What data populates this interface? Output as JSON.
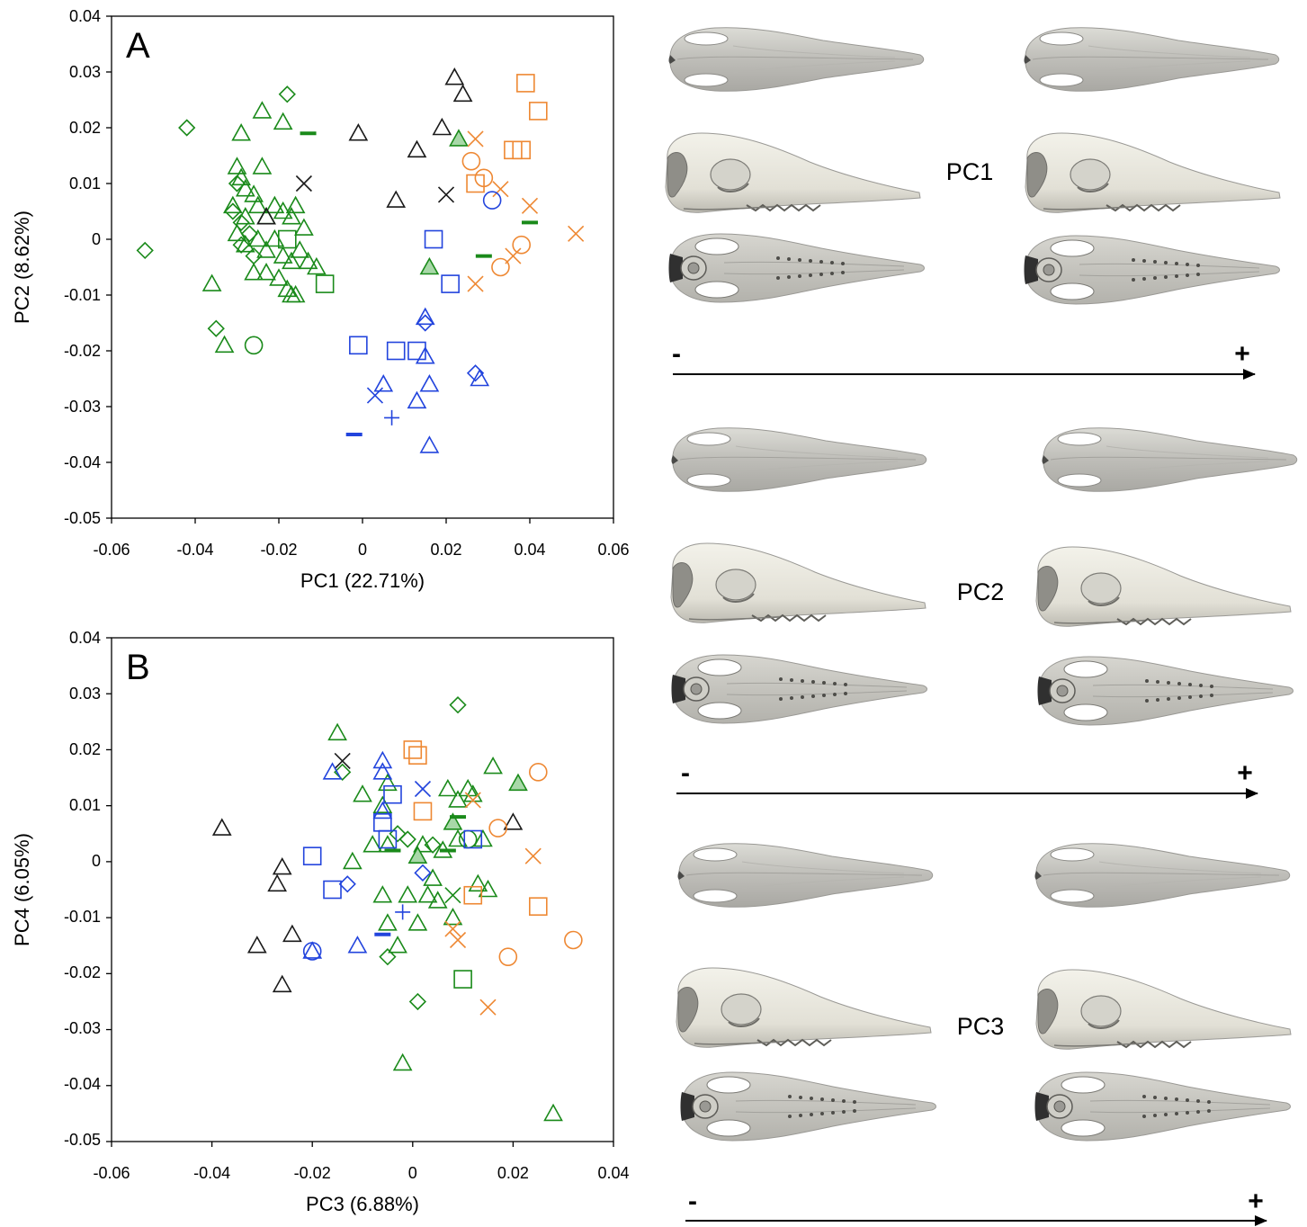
{
  "colors": {
    "green": "#1a8a1a",
    "black": "#1a1a1a",
    "blue": "#2244dd",
    "orange": "#ee8833",
    "green_fill": "#a8d8a8",
    "skull_light": "#efeee8",
    "skull_shade": "#8a8a88"
  },
  "chart_data": [
    {
      "type": "scatter",
      "panel_label": "A",
      "xlabel": "PC1 (22.71%)",
      "ylabel": "PC2 (8.62%)",
      "xlim": [
        -0.06,
        0.06
      ],
      "ylim": [
        -0.05,
        0.04
      ],
      "xticks": [
        "-0.06",
        "-0.04",
        "-0.02",
        "0",
        "0.02",
        "0.04",
        "0.06"
      ],
      "yticks": [
        "0.04",
        "0.03",
        "0.02",
        "0.01",
        "0",
        "-0.01",
        "-0.02",
        "-0.03",
        "-0.04",
        "-0.05"
      ],
      "grid": false,
      "series": [
        {
          "color": "green",
          "marker": "triangle",
          "points": [
            [
              -0.029,
              0.019
            ],
            [
              -0.024,
              0.023
            ],
            [
              -0.019,
              0.021
            ],
            [
              -0.03,
              0.013
            ],
            [
              -0.029,
              0.011
            ],
            [
              -0.028,
              0.009
            ],
            [
              -0.026,
              0.008
            ],
            [
              -0.024,
              0.013
            ],
            [
              -0.031,
              0.006
            ],
            [
              -0.028,
              0.004
            ],
            [
              -0.025,
              0.006
            ],
            [
              -0.023,
              0.004
            ],
            [
              -0.021,
              0.006
            ],
            [
              -0.019,
              0.005
            ],
            [
              -0.017,
              0.004
            ],
            [
              -0.016,
              0.006
            ],
            [
              -0.014,
              0.002
            ],
            [
              -0.03,
              0.001
            ],
            [
              -0.028,
              -0.001
            ],
            [
              -0.025,
              0.0
            ],
            [
              -0.023,
              -0.002
            ],
            [
              -0.021,
              0.0
            ],
            [
              -0.019,
              -0.003
            ],
            [
              -0.017,
              -0.004
            ],
            [
              -0.015,
              -0.002
            ],
            [
              -0.013,
              -0.004
            ],
            [
              -0.011,
              -0.005
            ],
            [
              -0.026,
              -0.006
            ],
            [
              -0.023,
              -0.006
            ],
            [
              -0.02,
              -0.007
            ],
            [
              -0.018,
              -0.009
            ],
            [
              -0.036,
              -0.008
            ],
            [
              -0.033,
              -0.019
            ],
            [
              -0.017,
              -0.01
            ],
            [
              -0.016,
              -0.01
            ]
          ]
        },
        {
          "color": "green",
          "marker": "triangle_filled",
          "points": [
            [
              0.023,
              0.018
            ],
            [
              0.016,
              -0.005
            ]
          ]
        },
        {
          "color": "green",
          "marker": "diamond",
          "points": [
            [
              -0.018,
              0.026
            ],
            [
              -0.042,
              0.02
            ],
            [
              -0.052,
              -0.002
            ],
            [
              -0.035,
              -0.016
            ],
            [
              -0.03,
              0.01
            ],
            [
              -0.031,
              0.005
            ],
            [
              -0.029,
              0.003
            ],
            [
              -0.027,
              0.001
            ],
            [
              -0.026,
              -0.003
            ],
            [
              -0.029,
              -0.001
            ]
          ]
        },
        {
          "color": "green",
          "marker": "square",
          "points": [
            [
              -0.009,
              -0.008
            ],
            [
              -0.018,
              0.0
            ]
          ]
        },
        {
          "color": "green",
          "marker": "circle",
          "points": [
            [
              -0.026,
              -0.019
            ]
          ]
        },
        {
          "color": "green",
          "marker": "dash",
          "points": [
            [
              -0.013,
              0.019
            ],
            [
              0.04,
              0.003
            ],
            [
              0.029,
              -0.003
            ]
          ]
        },
        {
          "color": "black",
          "marker": "triangle",
          "points": [
            [
              0.022,
              0.029
            ],
            [
              0.024,
              0.026
            ],
            [
              0.019,
              0.02
            ],
            [
              -0.001,
              0.019
            ],
            [
              0.013,
              0.016
            ],
            [
              0.008,
              0.007
            ],
            [
              -0.023,
              0.004
            ]
          ]
        },
        {
          "color": "black",
          "marker": "x",
          "points": [
            [
              -0.014,
              0.01
            ],
            [
              0.02,
              0.008
            ]
          ]
        },
        {
          "color": "orange",
          "marker": "square",
          "points": [
            [
              0.039,
              0.028
            ],
            [
              0.042,
              0.023
            ],
            [
              0.036,
              0.016
            ],
            [
              0.038,
              0.016
            ],
            [
              0.027,
              0.01
            ]
          ]
        },
        {
          "color": "orange",
          "marker": "circle",
          "points": [
            [
              0.026,
              0.014
            ],
            [
              0.029,
              0.011
            ],
            [
              0.033,
              -0.005
            ],
            [
              0.038,
              -0.001
            ]
          ]
        },
        {
          "color": "orange",
          "marker": "x",
          "points": [
            [
              0.027,
              0.018
            ],
            [
              0.033,
              0.009
            ],
            [
              0.04,
              0.006
            ],
            [
              0.051,
              0.001
            ],
            [
              0.036,
              -0.003
            ],
            [
              0.027,
              -0.008
            ]
          ]
        },
        {
          "color": "blue",
          "marker": "square",
          "points": [
            [
              0.017,
              0.0
            ],
            [
              0.021,
              -0.008
            ],
            [
              -0.001,
              -0.019
            ],
            [
              0.008,
              -0.02
            ],
            [
              0.013,
              -0.02
            ]
          ]
        },
        {
          "color": "blue",
          "marker": "triangle",
          "points": [
            [
              0.015,
              -0.014
            ],
            [
              0.015,
              -0.021
            ],
            [
              0.005,
              -0.026
            ],
            [
              0.016,
              -0.026
            ],
            [
              0.013,
              -0.029
            ],
            [
              0.016,
              -0.037
            ],
            [
              0.028,
              -0.025
            ]
          ]
        },
        {
          "color": "blue",
          "marker": "diamond",
          "points": [
            [
              0.015,
              -0.015
            ],
            [
              0.027,
              -0.024
            ]
          ]
        },
        {
          "color": "blue",
          "marker": "circle",
          "points": [
            [
              0.031,
              0.007
            ]
          ]
        },
        {
          "color": "blue",
          "marker": "x",
          "points": [
            [
              0.003,
              -0.028
            ]
          ]
        },
        {
          "color": "blue",
          "marker": "plus",
          "points": [
            [
              0.007,
              -0.032
            ]
          ]
        },
        {
          "color": "blue",
          "marker": "dash",
          "points": [
            [
              -0.002,
              -0.035
            ]
          ]
        }
      ]
    },
    {
      "type": "scatter",
      "panel_label": "B",
      "xlabel": "PC3 (6.88%)",
      "ylabel": "PC4 (6.05%)",
      "xlim": [
        -0.06,
        0.04
      ],
      "ylim": [
        -0.05,
        0.04
      ],
      "xticks": [
        "-0.06",
        "-0.04",
        "-0.02",
        "0",
        "0.02",
        "0.04"
      ],
      "yticks": [
        "0.04",
        "0.03",
        "0.02",
        "0.01",
        "0",
        "-0.01",
        "-0.02",
        "-0.03",
        "-0.04",
        "-0.05"
      ],
      "grid": false,
      "series": [
        {
          "color": "green",
          "marker": "triangle",
          "points": [
            [
              -0.015,
              0.023
            ],
            [
              -0.01,
              0.012
            ],
            [
              -0.005,
              0.014
            ],
            [
              -0.006,
              0.01
            ],
            [
              -0.008,
              0.003
            ],
            [
              -0.005,
              0.003
            ],
            [
              -0.012,
              0.0
            ],
            [
              -0.006,
              -0.006
            ],
            [
              -0.001,
              -0.006
            ],
            [
              0.002,
              0.003
            ],
            [
              -0.005,
              -0.011
            ],
            [
              -0.003,
              -0.015
            ],
            [
              0.001,
              -0.011
            ],
            [
              0.004,
              -0.003
            ],
            [
              0.005,
              -0.007
            ],
            [
              0.006,
              0.002
            ],
            [
              0.007,
              0.013
            ],
            [
              0.009,
              0.011
            ],
            [
              0.011,
              0.013
            ],
            [
              0.012,
              0.012
            ],
            [
              0.014,
              0.004
            ],
            [
              0.016,
              0.017
            ],
            [
              0.009,
              0.004
            ],
            [
              0.008,
              -0.01
            ],
            [
              0.013,
              -0.004
            ],
            [
              0.015,
              -0.005
            ],
            [
              0.003,
              -0.006
            ],
            [
              -0.002,
              -0.036
            ],
            [
              0.028,
              -0.045
            ]
          ]
        },
        {
          "color": "green",
          "marker": "triangle_filled",
          "points": [
            [
              0.021,
              0.014
            ],
            [
              0.008,
              0.007
            ],
            [
              0.001,
              0.001
            ]
          ]
        },
        {
          "color": "green",
          "marker": "diamond",
          "points": [
            [
              0.009,
              0.028
            ],
            [
              -0.014,
              0.016
            ],
            [
              -0.003,
              0.005
            ],
            [
              -0.005,
              -0.017
            ],
            [
              0.001,
              -0.025
            ],
            [
              0.004,
              0.003
            ],
            [
              -0.001,
              0.004
            ]
          ]
        },
        {
          "color": "green",
          "marker": "square",
          "points": [
            [
              0.01,
              -0.021
            ]
          ]
        },
        {
          "color": "green",
          "marker": "circle",
          "points": [
            [
              0.011,
              0.004
            ]
          ]
        },
        {
          "color": "green",
          "marker": "x",
          "points": [
            [
              0.008,
              -0.006
            ]
          ]
        },
        {
          "color": "green",
          "marker": "dash",
          "points": [
            [
              0.009,
              0.008
            ],
            [
              0.007,
              0.002
            ],
            [
              -0.004,
              0.002
            ]
          ]
        },
        {
          "color": "black",
          "marker": "triangle",
          "points": [
            [
              -0.038,
              0.006
            ],
            [
              -0.026,
              -0.001
            ],
            [
              -0.027,
              -0.004
            ],
            [
              -0.031,
              -0.015
            ],
            [
              -0.024,
              -0.013
            ],
            [
              -0.026,
              -0.022
            ],
            [
              0.02,
              0.007
            ]
          ]
        },
        {
          "color": "black",
          "marker": "x",
          "points": [
            [
              -0.014,
              0.018
            ]
          ]
        },
        {
          "color": "orange",
          "marker": "square",
          "points": [
            [
              0.0,
              0.02
            ],
            [
              0.001,
              0.019
            ],
            [
              0.002,
              0.009
            ],
            [
              0.012,
              -0.006
            ],
            [
              0.025,
              -0.008
            ]
          ]
        },
        {
          "color": "orange",
          "marker": "circle",
          "points": [
            [
              0.025,
              0.016
            ],
            [
              0.017,
              0.006
            ],
            [
              0.032,
              -0.014
            ],
            [
              0.019,
              -0.017
            ]
          ]
        },
        {
          "color": "orange",
          "marker": "x",
          "points": [
            [
              0.024,
              0.001
            ],
            [
              0.008,
              -0.012
            ],
            [
              0.009,
              -0.014
            ],
            [
              0.015,
              -0.026
            ],
            [
              0.012,
              0.011
            ]
          ]
        },
        {
          "color": "blue",
          "marker": "square",
          "points": [
            [
              -0.004,
              0.012
            ],
            [
              -0.006,
              0.007
            ],
            [
              -0.005,
              0.004
            ],
            [
              -0.02,
              0.001
            ],
            [
              -0.016,
              -0.005
            ],
            [
              0.012,
              0.004
            ]
          ]
        },
        {
          "color": "blue",
          "marker": "triangle",
          "points": [
            [
              -0.006,
              0.018
            ],
            [
              -0.016,
              0.016
            ],
            [
              -0.006,
              0.016
            ],
            [
              -0.006,
              0.009
            ],
            [
              -0.02,
              -0.016
            ],
            [
              -0.011,
              -0.015
            ]
          ]
        },
        {
          "color": "blue",
          "marker": "diamond",
          "points": [
            [
              -0.013,
              -0.004
            ],
            [
              0.002,
              -0.002
            ]
          ]
        },
        {
          "color": "blue",
          "marker": "circle",
          "points": [
            [
              -0.02,
              -0.016
            ]
          ]
        },
        {
          "color": "blue",
          "marker": "x",
          "points": [
            [
              0.002,
              0.013
            ]
          ]
        },
        {
          "color": "blue",
          "marker": "plus",
          "points": [
            [
              -0.002,
              -0.009
            ]
          ]
        },
        {
          "color": "blue",
          "marker": "dash",
          "points": [
            [
              -0.006,
              -0.013
            ]
          ]
        }
      ]
    }
  ],
  "skull_panels": [
    {
      "label": "PC1",
      "minus": "-",
      "plus": "+"
    },
    {
      "label": "PC2",
      "minus": "-",
      "plus": "+"
    },
    {
      "label": "PC3",
      "minus": "-",
      "plus": "+"
    }
  ]
}
